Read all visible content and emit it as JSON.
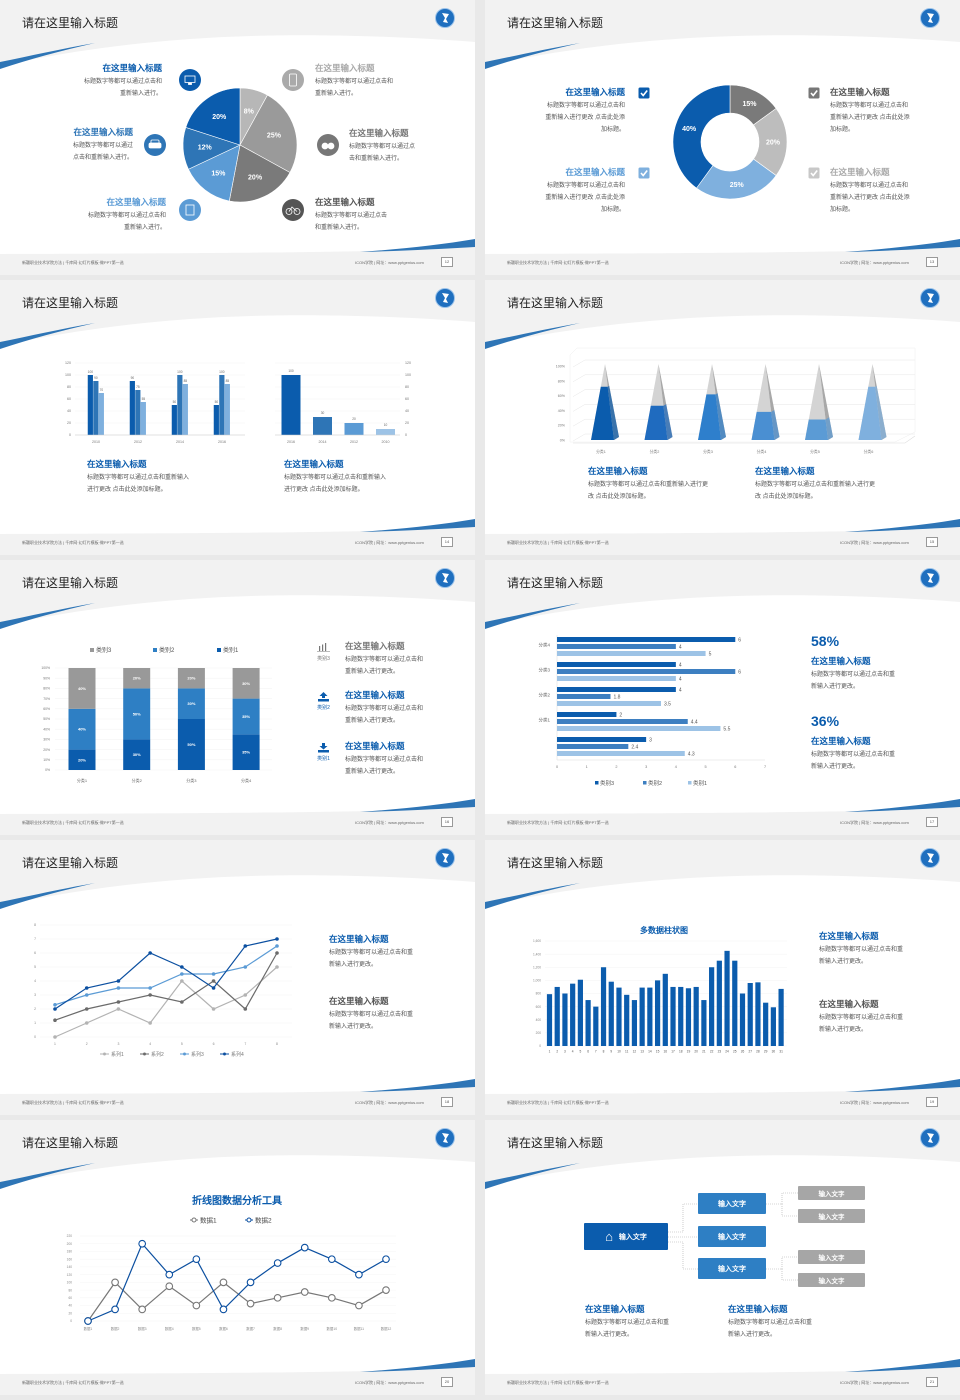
{
  "common": {
    "slide_title": "请在这里输入标题",
    "footer_left": "新疆职业技术学院方法 | 千库网·幻灯片模板·做PPT第一选",
    "footer_right": "ICON学院 | 网址：www.pptgenius.com",
    "pages": [
      "12",
      "13",
      "14",
      "15",
      "16",
      "17",
      "18",
      "19",
      "20",
      "21"
    ],
    "logo_icon": "school-emblem-icon",
    "accent": "#0b5cad"
  },
  "slides": [
    {
      "blocks": [
        {
          "title": "在这里输入标题",
          "desc": [
            "标题数字等都可以通过点击和",
            "重新输入进行。"
          ],
          "color": "#0b5cad",
          "icon": "monitor-icon"
        },
        {
          "title": "在这里输入标题",
          "desc": [
            "标题数字等都可以通过",
            "点击和重新输入进行。"
          ],
          "color": "#2e75b6",
          "icon": "car-icon"
        },
        {
          "title": "在这里输入标题",
          "desc": [
            "标题数字等都可以通过点击和",
            "重新输入进行。"
          ],
          "color": "#5b9bd5",
          "icon": "book-icon"
        },
        {
          "title": "在这里输入标题",
          "desc": [
            "标题数字等都可以通过点击和",
            "重新输入进行。"
          ],
          "color": "#aaaaaa",
          "icon": "phone-icon"
        },
        {
          "title": "在这里输入标题",
          "desc": [
            "标题数字等都可以通过点",
            "击和重新输入进行。"
          ],
          "color": "#777777",
          "icon": "binoculars-icon"
        },
        {
          "title": "在这里输入标题",
          "desc": [
            "标题数字等都可以通过点击",
            "和重新输入进行。"
          ],
          "color": "#555555",
          "icon": "bicycle-icon"
        }
      ]
    },
    {
      "blocks": [
        {
          "title": "在这里输入标题",
          "desc": [
            "标题数字等都可以通过点击和",
            "重新输入进行更改 点击此处添",
            "加标题。"
          ],
          "color": "#0b5cad"
        },
        {
          "title": "在这里输入标题",
          "desc": [
            "标题数字等都可以通过点击和",
            "重新输入进行更改 点击此处添",
            "加标题。"
          ],
          "color": "#5b9bd5"
        },
        {
          "title": "在这里输入标题",
          "desc": [
            "标题数字等都可以通过点击和",
            "重新输入进行更改 点击此处添",
            "加标题。"
          ],
          "color": "#555555"
        },
        {
          "title": "在这里输入标题",
          "desc": [
            "标题数字等都可以通过点击和",
            "重新输入进行更改 点击此处添",
            "加标题。"
          ],
          "color": "#aaaaaa"
        }
      ],
      "checkbox_colors": [
        "#0b5cad",
        "#7fb0de",
        "#777777",
        "#c8c8c8"
      ]
    },
    {
      "blocks": [
        {
          "title": "在这里输入标题",
          "desc": [
            "标题数字等都可以通过点击和重新输入",
            "进行更改 点击此处添加标题。"
          ],
          "color": "#0b5cad"
        },
        {
          "title": "在这里输入标题",
          "desc": [
            "标题数字等都可以通过点击和重新输入",
            "进行更改 点击此处添加标题。"
          ],
          "color": "#0b5cad"
        }
      ]
    },
    {
      "blocks": [
        {
          "title": "在这里输入标题",
          "desc": [
            "标题数字等都可以通过点击和重新输入进行更",
            "改 点击此处添加标题。"
          ],
          "color": "#0b5cad"
        },
        {
          "title": "在这里输入标题",
          "desc": [
            "标题数字等都可以通过点击和重新输入进行更",
            "改 点击此处添加标题。"
          ],
          "color": "#0b5cad"
        }
      ]
    },
    {
      "blocks": [
        {
          "title": "在这里输入标题",
          "desc": [
            "标题数字等都可以通过点击和",
            "重新输入进行更改。"
          ],
          "color": "#777777",
          "label": "类别3",
          "icon": "bar-chart-icon"
        },
        {
          "title": "在这里输入标题",
          "desc": [
            "标题数字等都可以通过点击和",
            "重新输入进行更改。"
          ],
          "color": "#0b5cad",
          "label": "类别2",
          "icon": "upload-icon"
        },
        {
          "title": "在这里输入标题",
          "desc": [
            "标题数字等都可以通过点击和",
            "重新输入进行更改。"
          ],
          "color": "#0b5cad",
          "label": "类别1",
          "icon": "download-icon"
        }
      ]
    },
    {
      "stats": [
        "58%",
        "36%"
      ],
      "blocks": [
        {
          "title": "在这里输入标题",
          "desc": [
            "标题数字等都可以通过点击和重",
            "新输入进行更改。"
          ],
          "color": "#0b5cad"
        },
        {
          "title": "在这里输入标题",
          "desc": [
            "标题数字等都可以通过点击和重",
            "新输入进行更改。"
          ],
          "color": "#0b5cad"
        }
      ]
    },
    {
      "blocks": [
        {
          "title": "在这里输入标题",
          "desc": [
            "标题数字等都可以通过点击和重",
            "新输入进行更改。"
          ],
          "color": "#0b5cad"
        },
        {
          "title": "在这里输入标题",
          "desc": [
            "标题数字等都可以通过点击和重",
            "新输入进行更改。"
          ],
          "color": "#555555"
        }
      ]
    },
    {
      "blocks": [
        {
          "title": "在这里输入标题",
          "desc": [
            "标题数字等都可以通过点击和重",
            "新输入进行更改。"
          ],
          "color": "#0b5cad"
        },
        {
          "title": "在这里输入标题",
          "desc": [
            "标题数字等都可以通过点击和重",
            "新输入进行更改。"
          ],
          "color": "#555555"
        }
      ]
    },
    {
      "blocks": []
    },
    {
      "tree": {
        "root": "输入文字",
        "mid": [
          "输入文字",
          "输入文字",
          "输入文字"
        ],
        "leaves": [
          "输入文字",
          "输入文字",
          "输入文字",
          "输入文字"
        ],
        "root_icon": "home-icon"
      },
      "blocks": [
        {
          "title": "在这里输入标题",
          "desc": [
            "标题数字等都可以通过点击和重",
            "新输入进行更改。"
          ],
          "color": "#0b5cad"
        },
        {
          "title": "在这里输入标题",
          "desc": [
            "标题数字等都可以通过点击和重",
            "新输入进行更改。"
          ],
          "color": "#0b5cad"
        }
      ]
    }
  ],
  "chart_data": [
    {
      "type": "pie",
      "values": [
        8,
        25,
        20,
        15,
        12,
        20
      ],
      "labels": [
        "8%",
        "25%",
        "20%",
        "15%",
        "12%",
        "20%"
      ],
      "colors": [
        "#b7b7b7",
        "#9a9a9a",
        "#7a7a7a",
        "#5b9bd5",
        "#2e75b6",
        "#0b5cad"
      ]
    },
    {
      "type": "pie",
      "donut": true,
      "values": [
        15,
        20,
        25,
        40
      ],
      "labels": [
        "15%",
        "20%",
        "25%",
        "40%"
      ],
      "colors": [
        "#7a7a7a",
        "#bdbdbd",
        "#7fb0de",
        "#0b5cad"
      ]
    },
    {
      "type": "bar",
      "categories": [
        "2010",
        "2012",
        "2014",
        "2016"
      ],
      "series": [
        {
          "values": [
            100,
            90,
            50,
            50
          ]
        },
        {
          "values": [
            90,
            75,
            100,
            100
          ]
        },
        {
          "values": [
            70,
            55,
            85,
            85
          ]
        }
      ],
      "ylim": [
        0,
        120
      ],
      "yticks": [
        "0",
        "20",
        "40",
        "60",
        "80",
        "100",
        "120"
      ],
      "colors": [
        "#0b5cad",
        "#2e75b6",
        "#7fb0de"
      ]
    },
    {
      "type": "bar",
      "categories": [
        "2016",
        "2014",
        "2012",
        "2010"
      ],
      "values": [
        100,
        30,
        20,
        10
      ],
      "ylim": [
        0,
        120
      ],
      "yticks": [
        "0",
        "20",
        "40",
        "60",
        "80",
        "100",
        "120"
      ],
      "colors": [
        "#0b5cad",
        "#2e75b6",
        "#5b9bd5",
        "#9dc3e6"
      ]
    },
    {
      "type": "bar",
      "style": "3d-pyramid",
      "categories": [
        "分类1",
        "分类2",
        "分类3",
        "分类4",
        "分类5",
        "分类6"
      ],
      "values": [
        70,
        45,
        60,
        37,
        27,
        70
      ],
      "ylim": [
        0,
        100
      ],
      "yticks": [
        "0%",
        "20%",
        "40%",
        "60%",
        "80%",
        "100%"
      ],
      "colors": [
        "#0b5cad",
        "#1f6bbf",
        "#2e7fcc",
        "#4a8fd2",
        "#5b9bd5",
        "#7fb0de"
      ]
    },
    {
      "type": "bar",
      "stacked": "percent",
      "categories": [
        "分类1",
        "分类2",
        "分类3",
        "分类4"
      ],
      "series": [
        {
          "name": "类别1",
          "values": [
            20,
            30,
            50,
            35
          ],
          "labels": [
            "20%",
            "30%",
            "50%",
            "35%"
          ]
        },
        {
          "name": "类别2",
          "values": [
            40,
            50,
            30,
            35
          ],
          "labels": [
            "40%",
            "50%",
            "30%",
            "35%"
          ]
        },
        {
          "name": "类别3",
          "values": [
            40,
            20,
            20,
            30
          ],
          "labels": [
            "40%",
            "20%",
            "20%",
            "30%"
          ]
        }
      ],
      "yticks": [
        "0%",
        "10%",
        "20%",
        "30%",
        "40%",
        "50%",
        "60%",
        "70%",
        "80%",
        "90%",
        "100%"
      ],
      "colors": [
        "#0b5cad",
        "#2e7fc4",
        "#999999"
      ],
      "legend": [
        "类别3",
        "类别2",
        "类别1"
      ],
      "legend_position": "top"
    },
    {
      "type": "bar",
      "orientation": "horizontal",
      "categories": [
        "分类4",
        "分类3",
        "分类2",
        "分类1",
        ""
      ],
      "series": [
        {
          "name": "类别3",
          "values": [
            6,
            4,
            4,
            2,
            3
          ]
        },
        {
          "name": "类别2",
          "values": [
            4,
            6,
            1.8,
            4.4,
            2.4
          ]
        },
        {
          "name": "类别1",
          "values": [
            5,
            4,
            3.5,
            5.5,
            4.3
          ]
        }
      ],
      "xlim": [
        0,
        7
      ],
      "xticks": [
        "0",
        "1",
        "2",
        "3",
        "4",
        "5",
        "6",
        "7"
      ],
      "colors": [
        "#0b5cad",
        "#3d7fc1",
        "#9dc3e6"
      ],
      "legend_position": "bottom"
    },
    {
      "type": "line",
      "x": [
        1,
        2,
        3,
        4,
        5,
        6,
        7,
        8
      ],
      "xticks": [
        "1",
        "2",
        "3",
        "4",
        "5",
        "6",
        "7",
        "8"
      ],
      "series": [
        {
          "name": "系列1",
          "values": [
            0,
            1,
            2,
            1,
            4,
            2,
            3,
            5
          ]
        },
        {
          "name": "系列2",
          "values": [
            1.2,
            2,
            2.5,
            3,
            2.5,
            4,
            2,
            6
          ]
        },
        {
          "name": "系列3",
          "values": [
            2.3,
            3,
            3.5,
            3.5,
            4.5,
            4.5,
            5,
            6.5
          ]
        },
        {
          "name": "系列4",
          "values": [
            2,
            3.5,
            4,
            6,
            5,
            3.5,
            6.5,
            7
          ]
        }
      ],
      "ylim": [
        0,
        8
      ],
      "yticks": [
        "0",
        "1",
        "2",
        "3",
        "4",
        "5",
        "6",
        "7",
        "8"
      ],
      "colors": [
        "#b3b3b3",
        "#6b6b6b",
        "#5b9bd5",
        "#0b4fa0"
      ],
      "legend_position": "bottom"
    },
    {
      "type": "bar",
      "title": "多数据柱状图",
      "categories": [
        "1",
        "2",
        "3",
        "4",
        "5",
        "6",
        "7",
        "8",
        "9",
        "10",
        "11",
        "12",
        "13",
        "14",
        "15",
        "16",
        "17",
        "18",
        "19",
        "20",
        "21",
        "22",
        "23",
        "24",
        "25",
        "26",
        "27",
        "28",
        "29",
        "30",
        "31"
      ],
      "values": [
        790,
        900,
        800,
        950,
        1010,
        700,
        600,
        1200,
        980,
        890,
        780,
        700,
        890,
        890,
        1000,
        1100,
        900,
        900,
        880,
        900,
        700,
        1200,
        1300,
        1450,
        1300,
        800,
        960,
        970,
        660,
        590,
        870
      ],
      "ylim": [
        0,
        1600
      ],
      "yticks": [
        "0",
        "200",
        "400",
        "600",
        "800",
        "1,000",
        "1,200",
        "1,400",
        "1,600"
      ],
      "colors": [
        "#0b5cad"
      ]
    },
    {
      "type": "line",
      "title": "折线图数据分析工具",
      "categories": [
        "数据1",
        "数据2",
        "数据3",
        "数据4",
        "数据5",
        "数据6",
        "数据7",
        "数据8",
        "数据9",
        "数据10",
        "数据11",
        "数据12"
      ],
      "series": [
        {
          "name": "数据1",
          "values": [
            0,
            100,
            30,
            90,
            40,
            100,
            45,
            60,
            75,
            60,
            40,
            80
          ]
        },
        {
          "name": "数据2",
          "values": [
            0,
            30,
            200,
            120,
            160,
            30,
            100,
            150,
            190,
            160,
            120,
            160
          ]
        }
      ],
      "ylim": [
        0,
        220
      ],
      "yticks": [
        "0",
        "20",
        "40",
        "60",
        "80",
        "100",
        "120",
        "140",
        "160",
        "180",
        "200",
        "220"
      ],
      "colors": [
        "#777777",
        "#0b4fa0"
      ],
      "legend_position": "top"
    }
  ]
}
